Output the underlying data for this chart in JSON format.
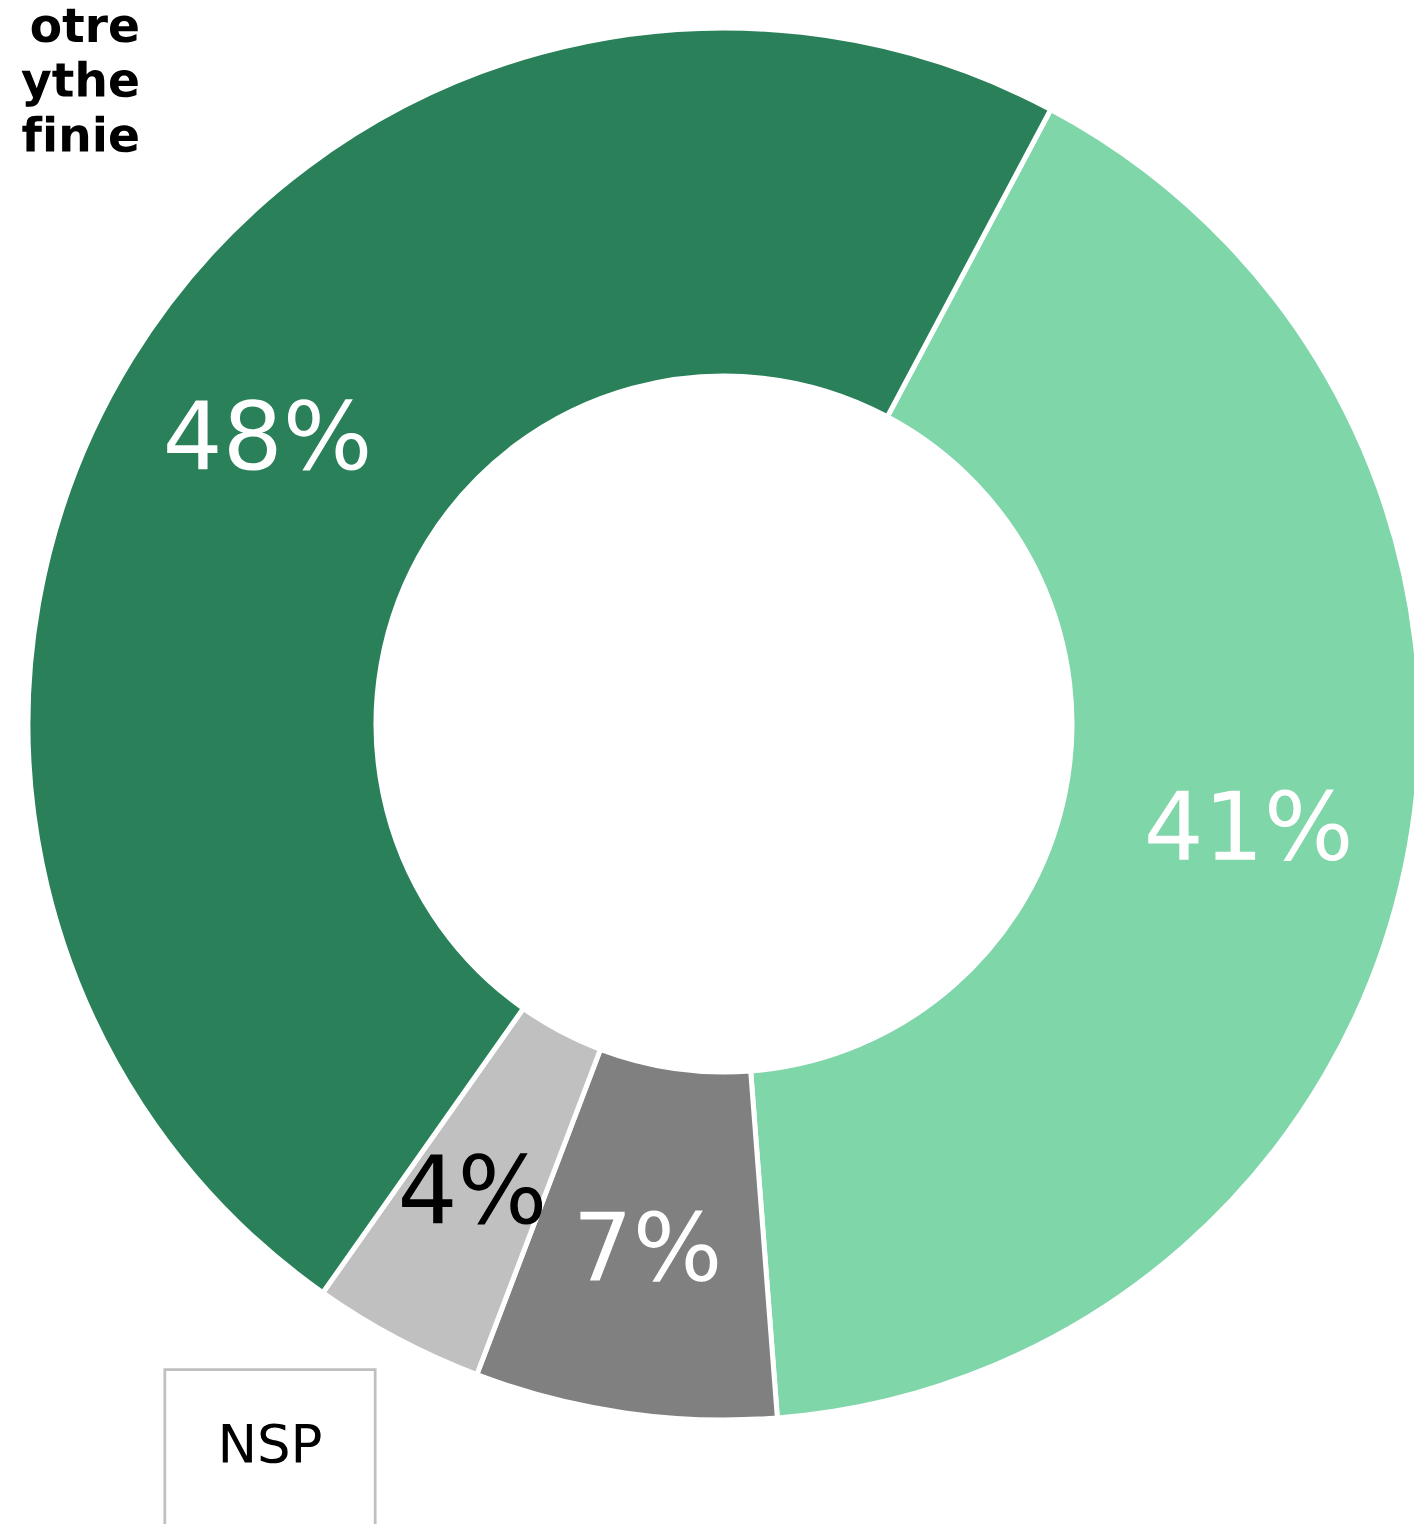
{
  "chart_data": {
    "type": "donut",
    "categories": [
      null,
      null,
      null,
      null
    ],
    "values": [
      41,
      7,
      4,
      48
    ],
    "value_labels": [
      "41%",
      "7%",
      "4%",
      "48%"
    ],
    "colors": [
      "#7fd6a9",
      "#808080",
      "#c0c0c0",
      "#2a8059"
    ],
    "annotations": [
      "otre\nythe\nfinie",
      "NSP"
    ]
  }
}
